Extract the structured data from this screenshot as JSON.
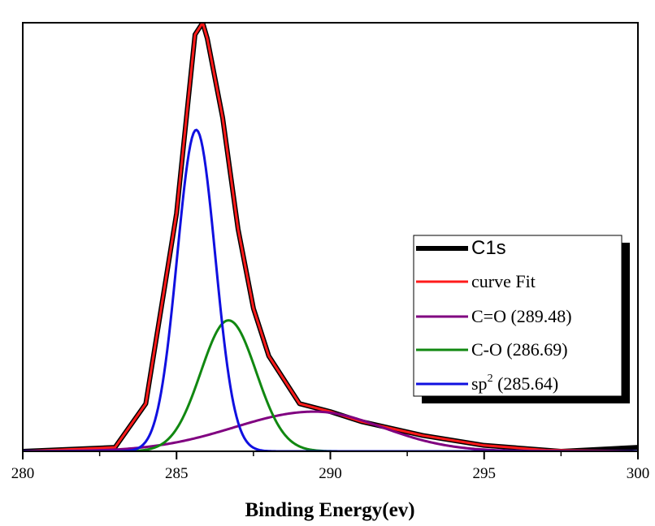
{
  "chart_data": {
    "type": "line",
    "title": "",
    "xlabel": "Binding Energy(ev)",
    "ylabel": "",
    "xlim": [
      280,
      300
    ],
    "ylim": [
      0,
      1.08
    ],
    "xticks": [
      280,
      285,
      290,
      295,
      300
    ],
    "xtick_labels": [
      "280",
      "285",
      "290",
      "295",
      "300"
    ],
    "grid": false,
    "legend_position": "right",
    "legend": [
      {
        "label": "C1s",
        "color": "#000000"
      },
      {
        "label": "curve Fit",
        "color": "#ff1a1a"
      },
      {
        "label": "C=O (289.48)",
        "color": "#800080"
      },
      {
        "label": "C-O (286.69)",
        "color": "#118811"
      },
      {
        "label": "sp",
        "label_sup": "2",
        "label_tail": " (285.64)",
        "color": "#1010e0"
      }
    ],
    "components": [
      {
        "name": "sp2",
        "center": 285.64,
        "height": 0.81,
        "sigma": 0.62
      },
      {
        "name": "C-O",
        "center": 286.69,
        "height": 0.33,
        "sigma": 0.9
      },
      {
        "name": "C=O",
        "center": 289.48,
        "height": 0.1,
        "sigma_left": 2.6,
        "sigma_right": 2.2
      }
    ],
    "series": [
      {
        "name": "C1s",
        "x": [
          280,
          283,
          284,
          285,
          285.6,
          285.85,
          286,
          286.5,
          287,
          287.5,
          288,
          289,
          290,
          291,
          293,
          295,
          297.5,
          300
        ],
        "y": [
          0.0,
          0.01,
          0.12,
          0.6,
          1.05,
          1.08,
          1.04,
          0.84,
          0.56,
          0.36,
          0.24,
          0.12,
          0.1,
          0.075,
          0.04,
          0.015,
          0.0,
          0.01
        ]
      },
      {
        "name": "curve Fit",
        "x": [
          280,
          283,
          284,
          285,
          285.6,
          285.85,
          286,
          286.5,
          287,
          287.5,
          288,
          289,
          290,
          291,
          293,
          295,
          297,
          300
        ],
        "y": [
          0.0,
          0.01,
          0.12,
          0.6,
          1.05,
          1.08,
          1.04,
          0.84,
          0.56,
          0.36,
          0.24,
          0.12,
          0.1,
          0.075,
          0.04,
          0.015,
          0.003,
          0.0
        ]
      }
    ]
  }
}
